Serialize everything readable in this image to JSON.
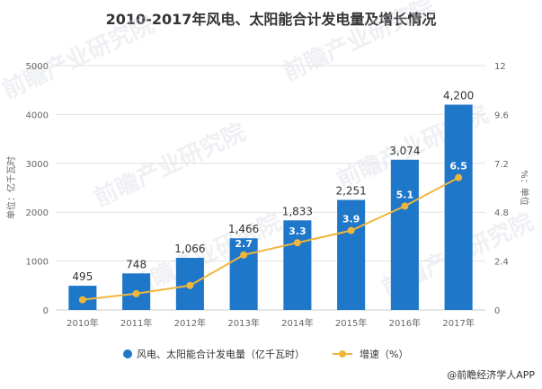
{
  "chart_data": {
    "type": "bar+line",
    "title": "2010-2017年风电、太阳能合计发电量及增长情况",
    "categories": [
      "2010年",
      "2011年",
      "2012年",
      "2013年",
      "2014年",
      "2015年",
      "2016年",
      "2017年"
    ],
    "series": [
      {
        "name": "风电、太阳能合计发电量（亿千瓦时）",
        "type": "bar",
        "axis": "left",
        "color": "#1f77c9",
        "values": [
          495,
          748,
          1066,
          1466,
          1833,
          2251,
          3074,
          4200
        ],
        "labels": [
          "495",
          "748",
          "1,066",
          "1,466",
          "1,833",
          "2,251",
          "3,074",
          "4,200"
        ]
      },
      {
        "name": "增速（%）",
        "type": "line",
        "axis": "right",
        "color": "#f0b63c",
        "values": [
          0.5,
          0.8,
          1.2,
          2.7,
          3.3,
          3.9,
          5.1,
          6.5
        ],
        "labels": [
          "",
          "",
          "",
          "2.7",
          "3.3",
          "3.9",
          "5.1",
          "6.5"
        ]
      }
    ],
    "y_left": {
      "label": "单位：亿千瓦时",
      "ylim": [
        0,
        5000
      ],
      "ticks": [
        "0",
        "1000",
        "2000",
        "3000",
        "4000",
        "5000"
      ]
    },
    "y_right": {
      "label": "%：单位",
      "ylim": [
        0,
        12
      ],
      "ticks": [
        "0",
        "2.4",
        "4.8",
        "7.2",
        "9.6",
        "12"
      ]
    },
    "grid": true,
    "legend_position": "bottom"
  },
  "watermark": "前瞻产业研究院",
  "source": "@前瞻经济学人APP"
}
